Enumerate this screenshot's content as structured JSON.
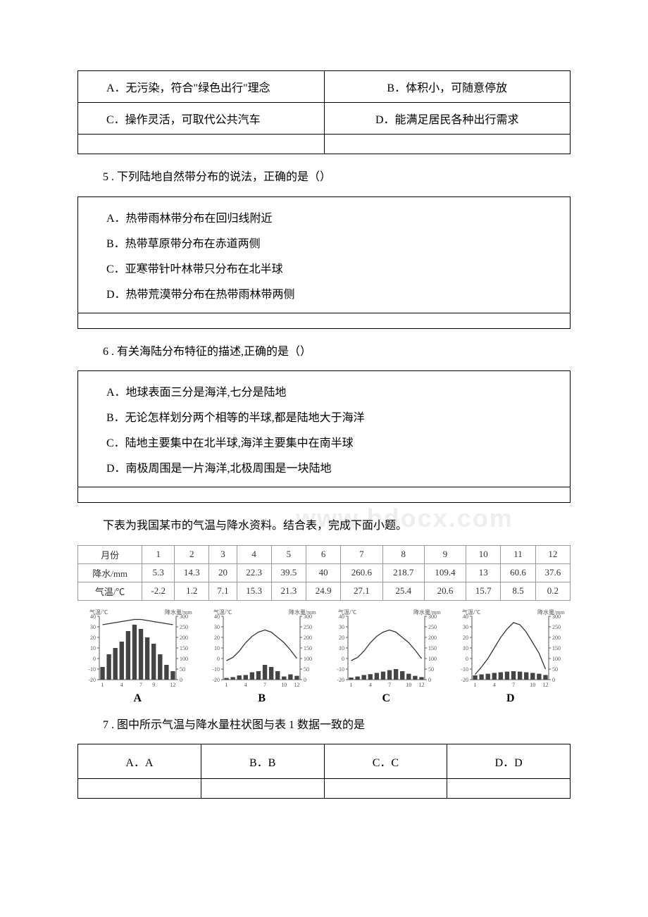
{
  "q4": {
    "options": {
      "a": "A．无污染，符合\"绿色出行\"理念",
      "b": "B．体积小，可随意停放",
      "c": "C．操作灵活，可取代公共汽车",
      "d": "D．能满足居民各种出行需求"
    }
  },
  "q5": {
    "text": "5 . 下列陆地自然带分布的说法，正确的是（）",
    "options": {
      "a": "A．热带雨林带分布在回归线附近",
      "b": "B．热带草原带分布在赤道两侧",
      "c": "C．亚寒带针叶林带只分布在北半球",
      "d": "D．热带荒漠带分布在热带雨林带两侧"
    }
  },
  "q6": {
    "text": "6 . 有关海陆分布特征的描述,正确的是（）",
    "options": {
      "a": "A．地球表面三分是海洋,七分是陆地",
      "b": "B．无论怎样划分两个相等的半球,都是陆地大于海洋",
      "c": "C．陆地主要集中在北半球,海洋主要集中在南半球",
      "d": "D．南极周围是一片海洋,北极周围是一块陆地"
    }
  },
  "intro7": "下表为我国某市的气温与降水资料。结合表，完成下面小题。",
  "watermark": "www.bdocx.com",
  "dataTable": {
    "headers": [
      "月份",
      "1",
      "2",
      "3",
      "4",
      "5",
      "6",
      "7",
      "8",
      "9",
      "10",
      "11",
      "12"
    ],
    "rows": [
      [
        "降水/mm",
        "5.3",
        "14.3",
        "20",
        "22.3",
        "39.5",
        "40",
        "260.6",
        "218.7",
        "109.4",
        "13",
        "60.6",
        "37.6"
      ],
      [
        "气温/℃",
        "-2.2",
        "1.2",
        "7.1",
        "15.3",
        "21.3",
        "24.9",
        "27.1",
        "25.4",
        "20.6",
        "15.7",
        "8.5",
        "0.2"
      ]
    ]
  },
  "charts": {
    "axisLabel": {
      "temp": "气温/℃",
      "precip": "降水量/mm"
    },
    "yTicksLeft": [
      40,
      30,
      20,
      10,
      0,
      -10,
      -20
    ],
    "yTicksRight": [
      300,
      250,
      200,
      150,
      100,
      50,
      0
    ],
    "xTicks": [
      "1",
      "4",
      "7",
      "9",
      "10",
      "12"
    ],
    "tickFont": 8,
    "axisColor": "#555555",
    "barColor": "#444444",
    "lineColor": "#333333",
    "items": [
      {
        "label": "A",
        "bars": [
          60,
          120,
          150,
          180,
          230,
          260,
          240,
          200,
          170,
          120,
          70,
          40
        ],
        "temps": [
          32,
          33,
          34,
          35,
          36,
          37,
          37,
          36,
          35,
          34,
          33,
          32
        ],
        "xLabels": [
          "1",
          "4",
          "7",
          "9",
          "12"
        ]
      },
      {
        "label": "B",
        "bars": [
          8,
          12,
          20,
          22,
          35,
          40,
          70,
          60,
          40,
          15,
          25,
          18
        ],
        "temps": [
          -2,
          1,
          7,
          15,
          21,
          25,
          27,
          25,
          20,
          15,
          8,
          0
        ],
        "xLabels": [
          "1",
          "4",
          "7",
          "10",
          "12"
        ]
      },
      {
        "label": "C",
        "bars": [
          10,
          15,
          22,
          26,
          32,
          38,
          45,
          50,
          40,
          28,
          18,
          12
        ],
        "temps": [
          -2,
          1,
          7,
          15,
          21,
          25,
          27,
          25,
          20,
          15,
          8,
          0
        ],
        "xLabels": [
          "1",
          "4",
          "7",
          "10",
          "12"
        ]
      },
      {
        "label": "D",
        "bars": [
          20,
          25,
          28,
          32,
          35,
          38,
          40,
          38,
          35,
          32,
          28,
          22
        ],
        "temps": [
          -15,
          -8,
          0,
          10,
          20,
          28,
          34,
          32,
          25,
          15,
          5,
          -10
        ],
        "xLabels": [
          "1",
          "4",
          "7",
          "10",
          "12"
        ]
      }
    ]
  },
  "q7": {
    "text": "7 . 图中所示气温与降水量柱状图与表 1 数据一致的是",
    "options": {
      "a": "A．A",
      "b": "B．B",
      "c": "C．C",
      "d": "D．D"
    }
  }
}
